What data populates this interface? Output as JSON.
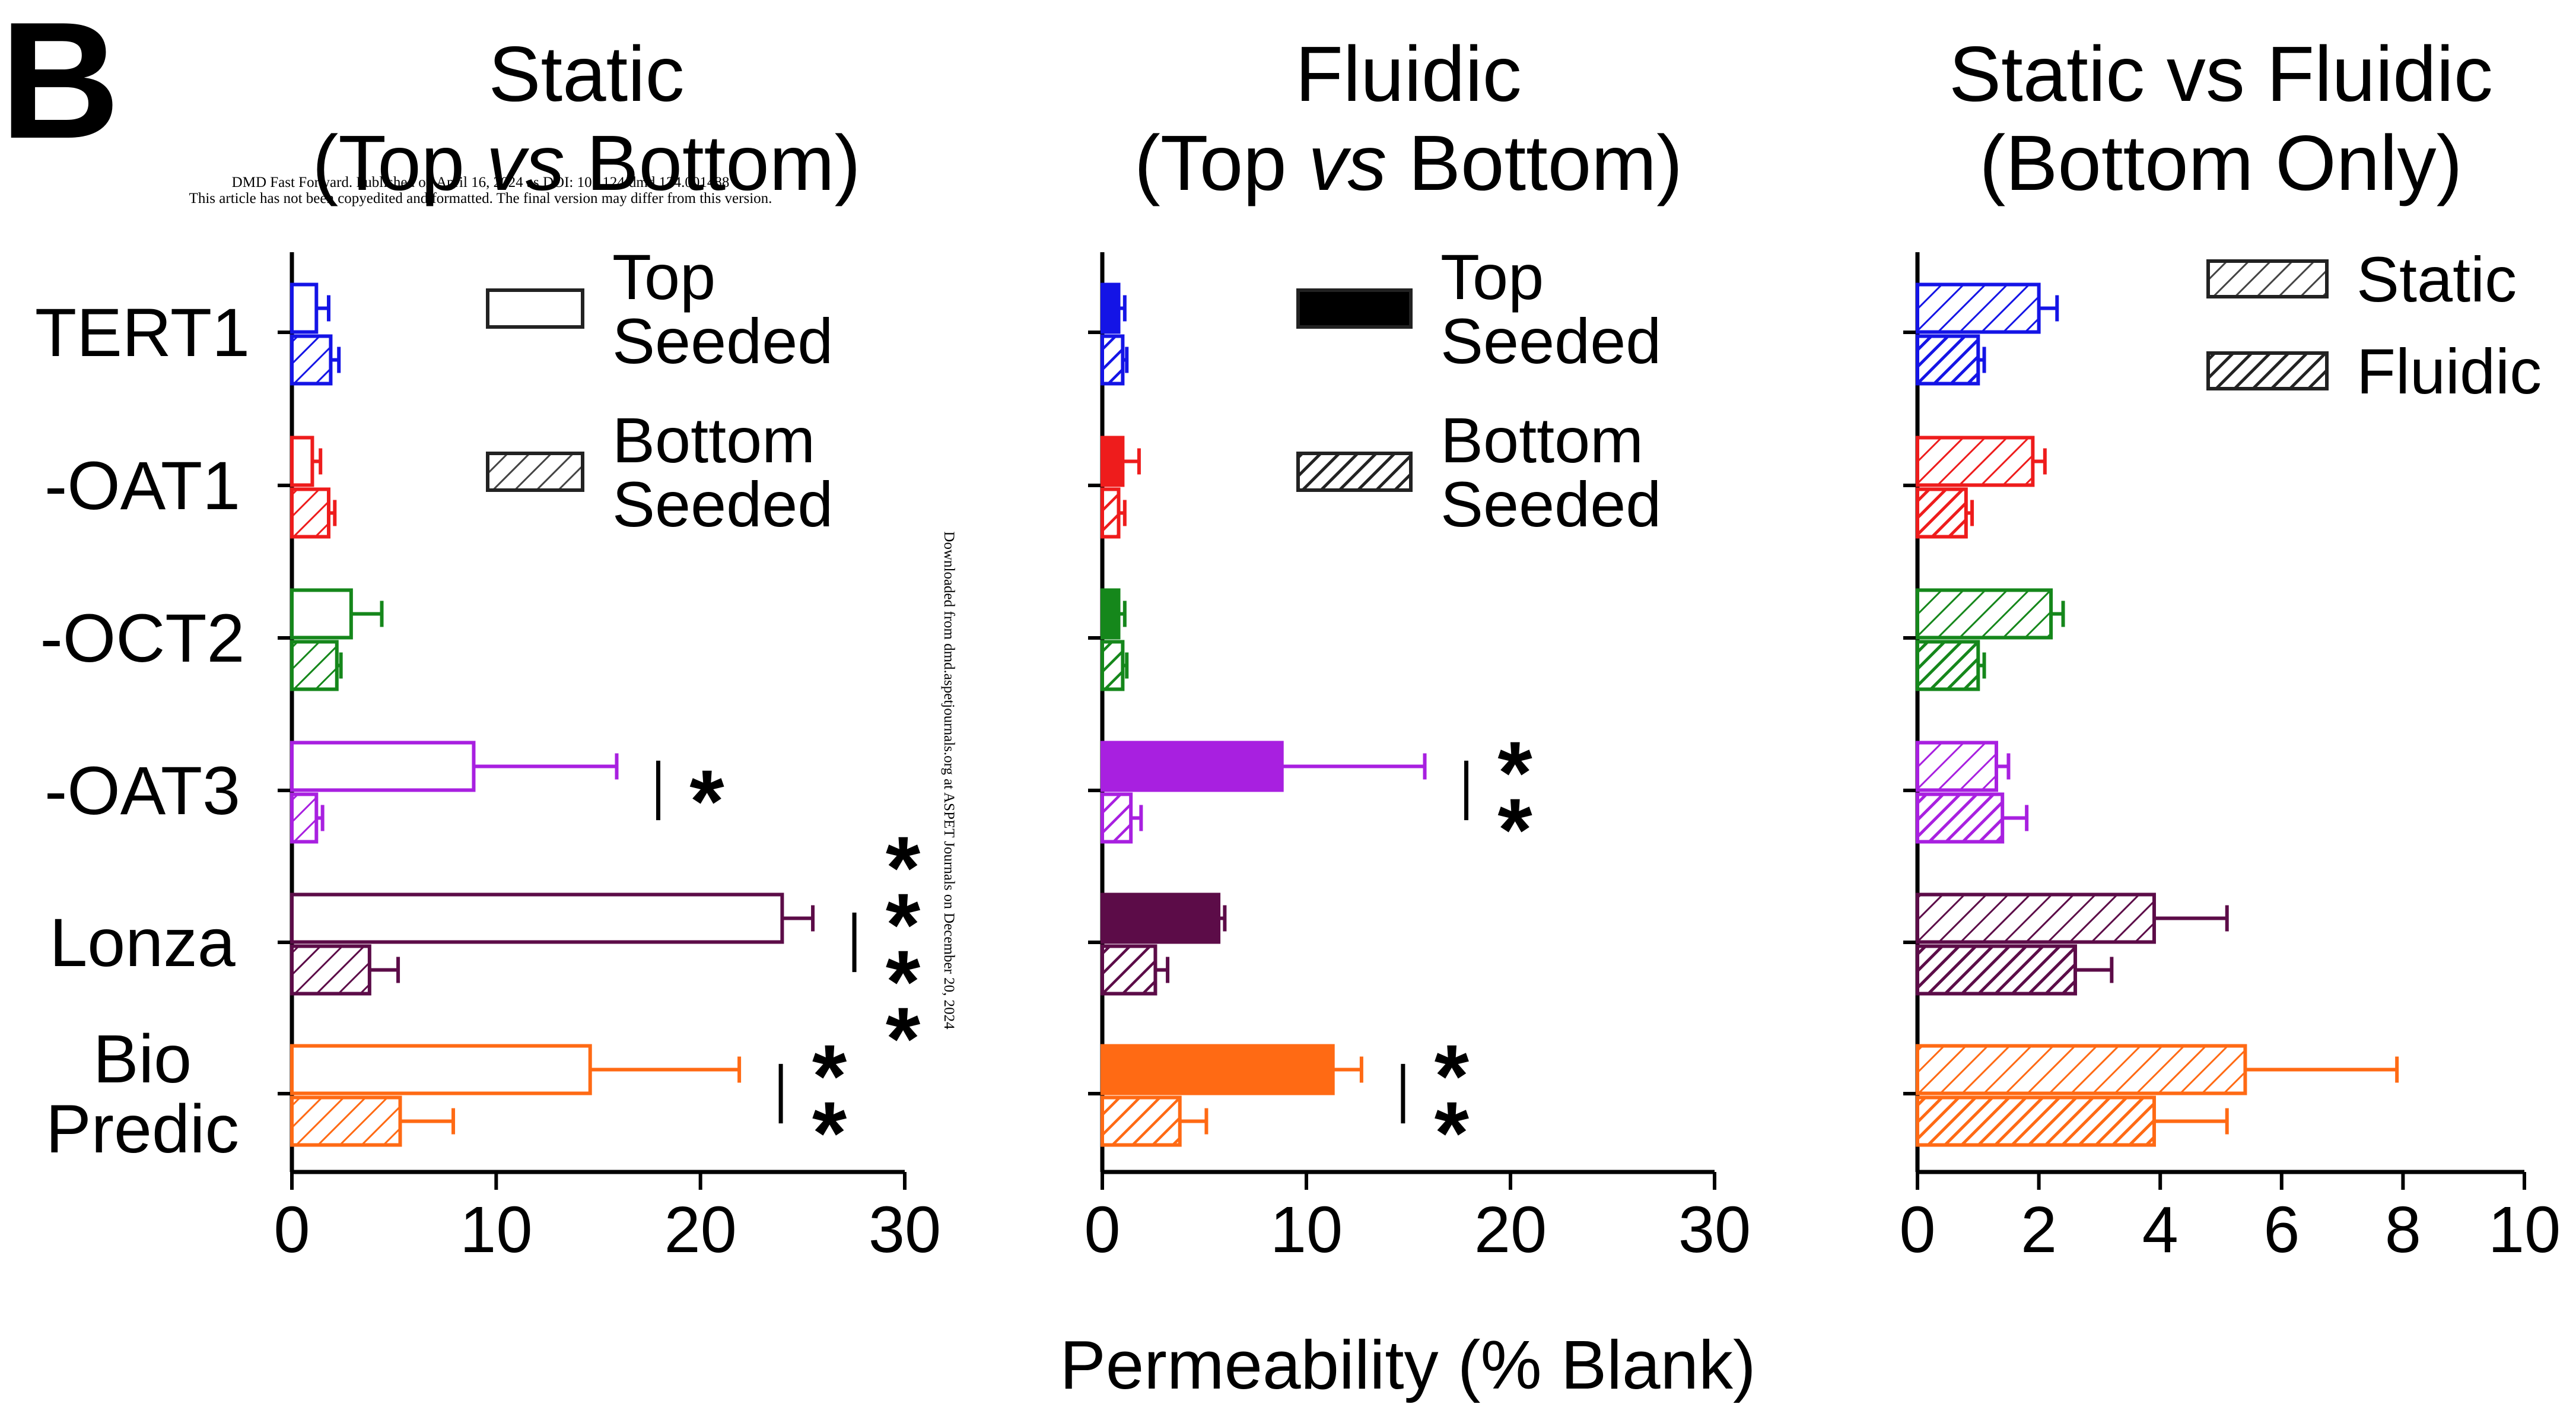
{
  "panel_label": "B",
  "watermark": {
    "line1": "DMD Fast Forward. Published on April 16, 2024 as DOI: 10.1124/dmd.124.001488",
    "line2": "This article has not been copyedited and formatted. The final version may differ from this version.",
    "side": "Downloaded from dmd.aspetjournals.org at ASPET Journals on December 20, 2024"
  },
  "shared_xlabel": "Permeability (% Blank)",
  "colors": {
    "TERT1": "#1414e6",
    "-OAT1": "#ee1c1c",
    "-OCT2": "#15871b",
    "-OAT3": "#a820e0",
    "Lonza": "#5c0c48",
    "Bio Predic": "#ff6a14"
  },
  "category_lines": [
    [
      "TERT1"
    ],
    [
      "-OAT1"
    ],
    [
      "-OCT2"
    ],
    [
      "-OAT3"
    ],
    [
      "Lonza"
    ],
    [
      "Bio",
      "Predic"
    ]
  ],
  "chart_data": [
    {
      "type": "bar",
      "orientation": "horizontal",
      "title_lines": [
        "Static",
        "(Top vs Bottom)"
      ],
      "xlim": [
        0,
        30
      ],
      "xticks": [
        0,
        10,
        20,
        30
      ],
      "categories": [
        "TERT1",
        "-OAT1",
        "-OCT2",
        "-OAT3",
        "Lonza",
        "Bio Predic"
      ],
      "series": [
        {
          "name": "Top Seeded",
          "legend_lines": [
            "Top",
            "Seeded"
          ],
          "fill": "open",
          "values": [
            1.2,
            1.0,
            2.9,
            8.9,
            24.0,
            14.6
          ],
          "errors": [
            0.6,
            0.4,
            1.5,
            7.0,
            1.5,
            7.3
          ]
        },
        {
          "name": "Bottom Seeded",
          "legend_lines": [
            "Bottom",
            "Seeded"
          ],
          "fill": "hatched",
          "values": [
            1.9,
            1.8,
            2.2,
            1.2,
            3.8,
            5.3
          ],
          "errors": [
            0.4,
            0.3,
            0.2,
            0.3,
            1.4,
            2.6
          ]
        }
      ],
      "significance": [
        {
          "category": "-OAT3",
          "label": "*"
        },
        {
          "category": "Lonza",
          "label": "****"
        },
        {
          "category": "Bio Predic",
          "label": "**"
        }
      ],
      "legend_position": "top-right"
    },
    {
      "type": "bar",
      "orientation": "horizontal",
      "title_lines": [
        "Fluidic",
        "(Top vs Bottom)"
      ],
      "xlim": [
        0,
        30
      ],
      "xticks": [
        0,
        10,
        20,
        30
      ],
      "categories": [
        "TERT1",
        "-OAT1",
        "-OCT2",
        "-OAT3",
        "Lonza",
        "Bio Predic"
      ],
      "series": [
        {
          "name": "Top Seeded",
          "legend_lines": [
            "Top",
            "Seeded"
          ],
          "fill": "solid",
          "values": [
            0.8,
            1.0,
            0.8,
            8.8,
            5.7,
            11.3
          ],
          "errors": [
            0.3,
            0.8,
            0.3,
            7.0,
            0.3,
            1.4
          ]
        },
        {
          "name": "Bottom Seeded",
          "legend_lines": [
            "Bottom",
            "Seeded"
          ],
          "fill": "hatched-dark",
          "values": [
            1.0,
            0.8,
            1.0,
            1.4,
            2.6,
            3.8
          ],
          "errors": [
            0.2,
            0.3,
            0.2,
            0.5,
            0.6,
            1.3
          ]
        }
      ],
      "significance": [
        {
          "category": "-OAT3",
          "label": "**"
        },
        {
          "category": "Bio Predic",
          "label": "**"
        }
      ],
      "legend_position": "top-right"
    },
    {
      "type": "bar",
      "orientation": "horizontal",
      "title_lines": [
        "Static vs Fluidic",
        "(Bottom Only)"
      ],
      "xlim": [
        0,
        10
      ],
      "xticks": [
        0,
        2,
        4,
        6,
        8,
        10
      ],
      "categories": [
        "TERT1",
        "-OAT1",
        "-OCT2",
        "-OAT3",
        "Lonza",
        "Bio Predic"
      ],
      "series": [
        {
          "name": "Static",
          "legend_lines": [
            "Static"
          ],
          "fill": "hatched-light",
          "values": [
            2.0,
            1.9,
            2.2,
            1.3,
            3.9,
            5.4
          ],
          "errors": [
            0.3,
            0.2,
            0.2,
            0.2,
            1.2,
            2.5
          ]
        },
        {
          "name": "Fluidic",
          "legend_lines": [
            "Fluidic"
          ],
          "fill": "hatched-dense",
          "values": [
            1.0,
            0.8,
            1.0,
            1.4,
            2.6,
            3.9
          ],
          "errors": [
            0.1,
            0.1,
            0.1,
            0.4,
            0.6,
            1.2
          ]
        }
      ],
      "significance": [],
      "legend_position": "top-right"
    }
  ]
}
